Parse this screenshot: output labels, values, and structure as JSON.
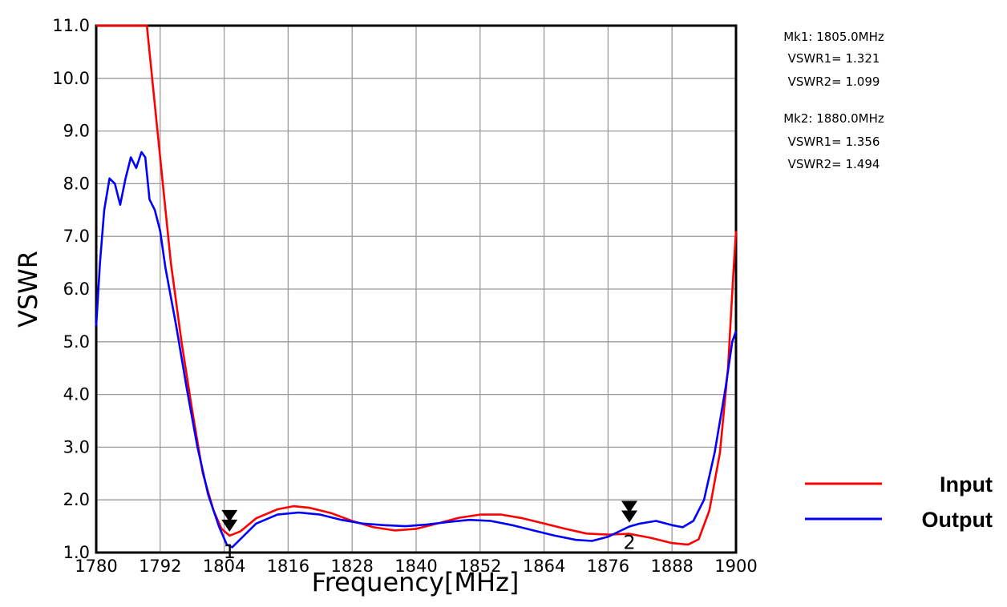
{
  "chart_data": {
    "type": "line",
    "xlabel": "Frequency[MHz]",
    "ylabel": "VSWR",
    "xlim": [
      1780,
      1900
    ],
    "ylim": [
      1.0,
      11.0
    ],
    "x_ticks": [
      "1780",
      "1792",
      "1804",
      "1816",
      "1828",
      "1840",
      "1852",
      "1864",
      "1876",
      "1888",
      "1900"
    ],
    "y_ticks": [
      "1.0",
      "2.0",
      "3.0",
      "4.0",
      "5.0",
      "6.0",
      "7.0",
      "8.0",
      "9.0",
      "10.0",
      "11.0"
    ],
    "grid": true,
    "legend_position": "bottom-right",
    "series": [
      {
        "name": "Input",
        "color": "#ff0000",
        "points": [
          [
            1780,
            11.0
          ],
          [
            1789.5,
            11.0
          ],
          [
            1791,
            9.5
          ],
          [
            1792.5,
            8.0
          ],
          [
            1794,
            6.5
          ],
          [
            1796,
            5.0
          ],
          [
            1798,
            3.7
          ],
          [
            1800,
            2.5
          ],
          [
            1802,
            1.8
          ],
          [
            1803.5,
            1.45
          ],
          [
            1805,
            1.32
          ],
          [
            1807,
            1.4
          ],
          [
            1810,
            1.65
          ],
          [
            1814,
            1.82
          ],
          [
            1817,
            1.88
          ],
          [
            1820,
            1.85
          ],
          [
            1824,
            1.75
          ],
          [
            1828,
            1.6
          ],
          [
            1832,
            1.48
          ],
          [
            1836,
            1.42
          ],
          [
            1840,
            1.45
          ],
          [
            1844,
            1.55
          ],
          [
            1848,
            1.66
          ],
          [
            1852,
            1.72
          ],
          [
            1856,
            1.72
          ],
          [
            1860,
            1.65
          ],
          [
            1864,
            1.55
          ],
          [
            1868,
            1.45
          ],
          [
            1872,
            1.36
          ],
          [
            1876,
            1.34
          ],
          [
            1880,
            1.356
          ],
          [
            1884,
            1.28
          ],
          [
            1888,
            1.18
          ],
          [
            1891,
            1.15
          ],
          [
            1893,
            1.25
          ],
          [
            1895,
            1.8
          ],
          [
            1897,
            2.9
          ],
          [
            1898.5,
            4.5
          ],
          [
            1899.5,
            6.3
          ],
          [
            1900,
            7.1
          ]
        ]
      },
      {
        "name": "Output",
        "color": "#0000ff",
        "points": [
          [
            1780,
            5.3
          ],
          [
            1780.7,
            6.5
          ],
          [
            1781.5,
            7.5
          ],
          [
            1782.5,
            8.1
          ],
          [
            1783.5,
            8.0
          ],
          [
            1784.5,
            7.6
          ],
          [
            1785.5,
            8.1
          ],
          [
            1786.5,
            8.5
          ],
          [
            1787.5,
            8.3
          ],
          [
            1788.5,
            8.6
          ],
          [
            1789.2,
            8.5
          ],
          [
            1790,
            7.7
          ],
          [
            1791,
            7.5
          ],
          [
            1792,
            7.1
          ],
          [
            1793,
            6.4
          ],
          [
            1795,
            5.3
          ],
          [
            1797,
            4.1
          ],
          [
            1799,
            3.0
          ],
          [
            1801,
            2.1
          ],
          [
            1803,
            1.5
          ],
          [
            1804.5,
            1.15
          ],
          [
            1805.5,
            1.1
          ],
          [
            1807,
            1.25
          ],
          [
            1810,
            1.55
          ],
          [
            1814,
            1.72
          ],
          [
            1818,
            1.76
          ],
          [
            1822,
            1.72
          ],
          [
            1826,
            1.62
          ],
          [
            1830,
            1.55
          ],
          [
            1834,
            1.52
          ],
          [
            1838,
            1.5
          ],
          [
            1842,
            1.53
          ],
          [
            1846,
            1.58
          ],
          [
            1850,
            1.62
          ],
          [
            1854,
            1.6
          ],
          [
            1858,
            1.52
          ],
          [
            1862,
            1.42
          ],
          [
            1866,
            1.32
          ],
          [
            1870,
            1.24
          ],
          [
            1873,
            1.22
          ],
          [
            1876,
            1.3
          ],
          [
            1880,
            1.494
          ],
          [
            1882,
            1.55
          ],
          [
            1885,
            1.6
          ],
          [
            1888,
            1.52
          ],
          [
            1890,
            1.48
          ],
          [
            1892,
            1.6
          ],
          [
            1894,
            2.0
          ],
          [
            1896,
            2.9
          ],
          [
            1898,
            4.1
          ],
          [
            1899.3,
            5.0
          ],
          [
            1900,
            5.2
          ]
        ]
      }
    ],
    "markers": [
      {
        "id": "1",
        "label": "1",
        "freq": 1805.0,
        "vswr1": 1.321,
        "vswr2": 1.099
      },
      {
        "id": "2",
        "label": "2",
        "freq": 1880.0,
        "vswr1": 1.356,
        "vswr2": 1.494
      }
    ],
    "marker_readout": [
      {
        "line1": "Mk1: 1805.0MHz",
        "line2": "VSWR1= 1.321",
        "line3": "VSWR2= 1.099"
      },
      {
        "line1": "Mk2: 1880.0MHz",
        "line2": "VSWR1= 1.356",
        "line3": "VSWR2= 1.494"
      }
    ]
  },
  "legend": [
    {
      "label": "Input",
      "color": "#ff0000"
    },
    {
      "label": "Output",
      "color": "#0000ff"
    }
  ]
}
